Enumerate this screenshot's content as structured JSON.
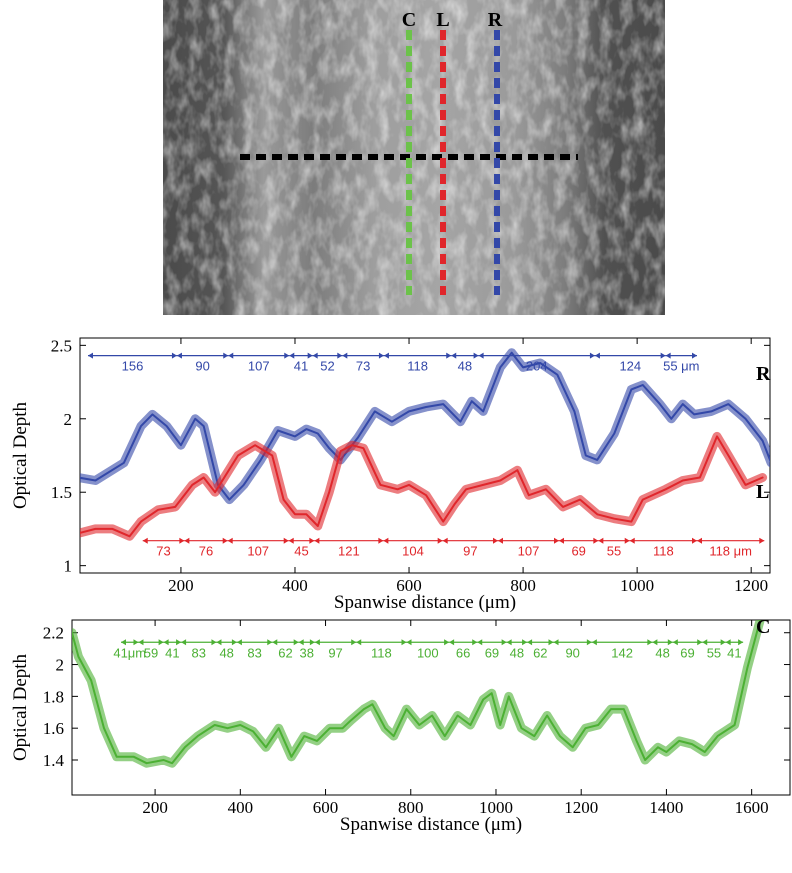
{
  "image": {
    "labels": [
      "C",
      "L",
      "R"
    ]
  },
  "chart_data": [
    {
      "type": "line",
      "xlabel": "Spanwise distance (μm)",
      "ylabel": "Optical Depth",
      "xlim": [
        23,
        1233
      ],
      "ylim": [
        0.95,
        2.55
      ],
      "xticks": [
        200,
        400,
        600,
        800,
        1000,
        1200
      ],
      "yticks": [
        1,
        1.5,
        2,
        2.5
      ],
      "series": [
        {
          "name": "R",
          "color": "#3348a8",
          "x": [
            20,
            50,
            100,
            130,
            150,
            175,
            200,
            225,
            240,
            265,
            285,
            310,
            340,
            370,
            400,
            420,
            440,
            460,
            480,
            510,
            540,
            570,
            600,
            630,
            660,
            690,
            710,
            730,
            760,
            780,
            800,
            830,
            860,
            890,
            910,
            930,
            960,
            990,
            1010,
            1040,
            1060,
            1080,
            1100,
            1130,
            1160,
            1190,
            1220,
            1235
          ],
          "values": [
            1.6,
            1.58,
            1.7,
            1.95,
            2.03,
            1.95,
            1.82,
            2.0,
            1.95,
            1.55,
            1.45,
            1.55,
            1.72,
            1.92,
            1.88,
            1.93,
            1.9,
            1.8,
            1.72,
            1.87,
            2.05,
            1.98,
            2.05,
            2.08,
            2.1,
            1.98,
            2.12,
            2.05,
            2.35,
            2.45,
            2.35,
            2.38,
            2.3,
            2.05,
            1.75,
            1.72,
            1.9,
            2.2,
            2.23,
            2.1,
            2.0,
            2.1,
            2.03,
            2.05,
            2.1,
            2.0,
            1.85,
            1.7
          ],
          "spacings": {
            "values": [
              156,
              90,
              107,
              41,
              52,
              73,
              118,
              48,
              204,
              124,
              55
            ],
            "value_labels": [
              "156",
              "90",
              "107",
              "41",
              "52",
              "73",
              "118",
              "48",
              "204",
              "124",
              "55 μm"
            ]
          }
        },
        {
          "name": "L",
          "color": "#e0262b",
          "x": [
            20,
            50,
            80,
            110,
            130,
            160,
            190,
            220,
            240,
            260,
            300,
            330,
            360,
            380,
            400,
            420,
            440,
            460,
            480,
            500,
            520,
            550,
            580,
            600,
            630,
            660,
            680,
            700,
            730,
            760,
            790,
            810,
            840,
            870,
            900,
            930,
            960,
            990,
            1010,
            1050,
            1080,
            1110,
            1140,
            1160,
            1190,
            1220
          ],
          "values": [
            1.22,
            1.25,
            1.25,
            1.2,
            1.3,
            1.38,
            1.4,
            1.55,
            1.6,
            1.5,
            1.75,
            1.82,
            1.75,
            1.45,
            1.35,
            1.35,
            1.27,
            1.5,
            1.78,
            1.82,
            1.8,
            1.55,
            1.52,
            1.55,
            1.48,
            1.3,
            1.42,
            1.52,
            1.55,
            1.58,
            1.65,
            1.48,
            1.52,
            1.4,
            1.45,
            1.35,
            1.32,
            1.3,
            1.45,
            1.52,
            1.58,
            1.6,
            1.88,
            1.75,
            1.55,
            1.6
          ],
          "spacings": {
            "values": [
              73,
              76,
              107,
              45,
              121,
              104,
              97,
              107,
              69,
              55,
              118,
              118
            ],
            "value_labels": [
              "73",
              "76",
              "107",
              "45",
              "121",
              "104",
              "97",
              "107",
              "69",
              "55",
              "118",
              "118 μm"
            ]
          }
        }
      ]
    },
    {
      "type": "line",
      "xlabel": "Spanwise distance (μm)",
      "ylabel": "Optical Depth",
      "xlim": [
        5,
        1690
      ],
      "ylim": [
        1.18,
        2.28
      ],
      "xticks": [
        200,
        400,
        600,
        800,
        1000,
        1200,
        1400,
        1600
      ],
      "yticks": [
        1.4,
        1.6,
        1.8,
        2,
        2.2
      ],
      "series": [
        {
          "name": "C",
          "color": "#4cb034",
          "x": [
            5,
            20,
            50,
            80,
            110,
            150,
            180,
            220,
            240,
            270,
            300,
            340,
            370,
            400,
            430,
            460,
            490,
            520,
            550,
            580,
            610,
            640,
            660,
            690,
            710,
            740,
            760,
            790,
            820,
            850,
            880,
            910,
            940,
            970,
            990,
            1010,
            1030,
            1060,
            1090,
            1120,
            1150,
            1180,
            1210,
            1240,
            1270,
            1300,
            1330,
            1350,
            1380,
            1400,
            1430,
            1460,
            1490,
            1520,
            1560,
            1590,
            1620
          ],
          "values": [
            2.2,
            2.05,
            1.9,
            1.6,
            1.42,
            1.42,
            1.38,
            1.4,
            1.38,
            1.48,
            1.55,
            1.62,
            1.6,
            1.62,
            1.58,
            1.48,
            1.6,
            1.42,
            1.55,
            1.52,
            1.6,
            1.6,
            1.65,
            1.72,
            1.75,
            1.6,
            1.55,
            1.72,
            1.62,
            1.68,
            1.55,
            1.68,
            1.62,
            1.78,
            1.82,
            1.62,
            1.8,
            1.6,
            1.55,
            1.68,
            1.55,
            1.48,
            1.6,
            1.62,
            1.72,
            1.72,
            1.52,
            1.4,
            1.48,
            1.45,
            1.52,
            1.5,
            1.45,
            1.55,
            1.62,
            1.98,
            2.28
          ],
          "spacings": {
            "values": [
              41,
              59,
              41,
              83,
              48,
              83,
              62,
              38,
              97,
              118,
              100,
              66,
              69,
              48,
              62,
              90,
              142,
              48,
              69,
              55,
              41
            ],
            "value_labels": [
              "41μm",
              "59",
              "41",
              "83",
              "48",
              "83",
              "62",
              "38",
              "97",
              "118",
              "100",
              "66",
              "69",
              "48",
              "62",
              "90",
              "142",
              "48",
              "69",
              "55",
              "41"
            ]
          }
        }
      ]
    }
  ]
}
